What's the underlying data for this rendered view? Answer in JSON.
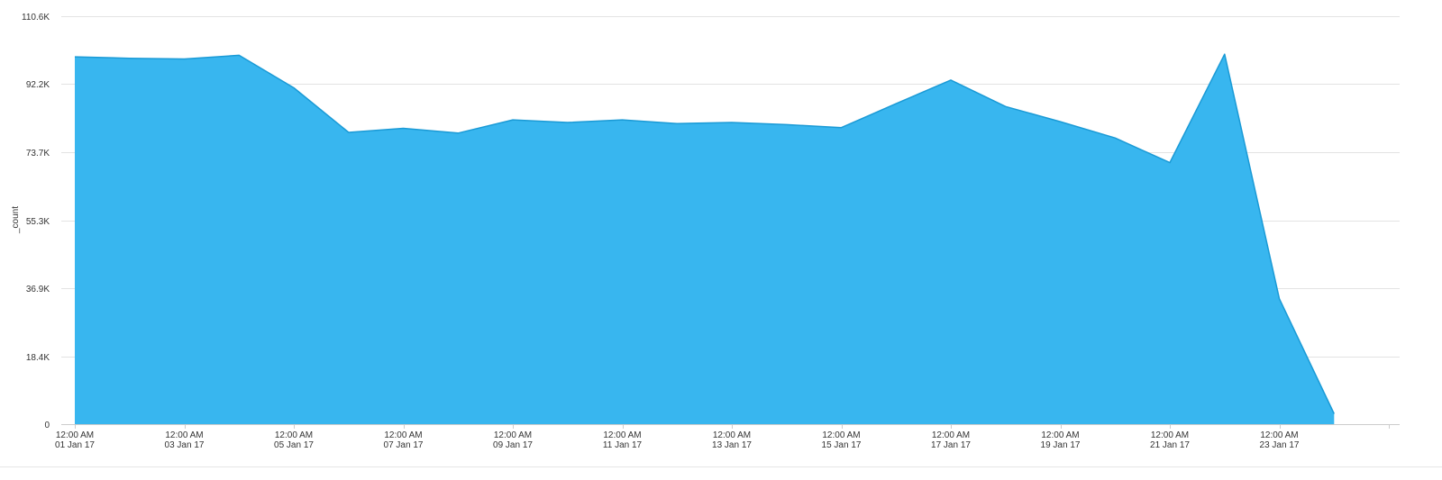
{
  "chart_data": {
    "type": "area",
    "title": "",
    "xlabel": "",
    "ylabel": "_count",
    "ylim": [
      0,
      110600
    ],
    "y_ticks": [
      {
        "value": 0,
        "label": "0"
      },
      {
        "value": 18433,
        "label": "18.4K"
      },
      {
        "value": 36867,
        "label": "36.9K"
      },
      {
        "value": 55300,
        "label": "55.3K"
      },
      {
        "value": 73733,
        "label": "73.7K"
      },
      {
        "value": 92167,
        "label": "92.2K"
      },
      {
        "value": 110600,
        "label": "110.6K"
      }
    ],
    "x_ticks": [
      {
        "date": "2017-01-01",
        "time": "12:00 AM",
        "label": "01 Jan 17"
      },
      {
        "date": "2017-01-03",
        "time": "12:00 AM",
        "label": "03 Jan 17"
      },
      {
        "date": "2017-01-05",
        "time": "12:00 AM",
        "label": "05 Jan 17"
      },
      {
        "date": "2017-01-07",
        "time": "12:00 AM",
        "label": "07 Jan 17"
      },
      {
        "date": "2017-01-09",
        "time": "12:00 AM",
        "label": "09 Jan 17"
      },
      {
        "date": "2017-01-11",
        "time": "12:00 AM",
        "label": "11 Jan 17"
      },
      {
        "date": "2017-01-13",
        "time": "12:00 AM",
        "label": "13 Jan 17"
      },
      {
        "date": "2017-01-15",
        "time": "12:00 AM",
        "label": "15 Jan 17"
      },
      {
        "date": "2017-01-17",
        "time": "12:00 AM",
        "label": "17 Jan 17"
      },
      {
        "date": "2017-01-19",
        "time": "12:00 AM",
        "label": "19 Jan 17"
      },
      {
        "date": "2017-01-21",
        "time": "12:00 AM",
        "label": "21 Jan 17"
      },
      {
        "date": "2017-01-23",
        "time": "12:00 AM",
        "label": "23 Jan 17"
      }
    ],
    "xlim": [
      "2017-01-01",
      "2017-01-25"
    ],
    "grid": true,
    "legend": "none",
    "series": [
      {
        "color": "#38b6ef",
        "line_color": "#1a9ad6",
        "x": [
          "2017-01-01",
          "2017-01-02",
          "2017-01-03",
          "2017-01-04",
          "2017-01-05",
          "2017-01-06",
          "2017-01-07",
          "2017-01-08",
          "2017-01-09",
          "2017-01-10",
          "2017-01-11",
          "2017-01-12",
          "2017-01-13",
          "2017-01-14",
          "2017-01-15",
          "2017-01-16",
          "2017-01-17",
          "2017-01-18",
          "2017-01-19",
          "2017-01-20",
          "2017-01-21",
          "2017-01-22",
          "2017-01-23",
          "2017-01-24"
        ],
        "y": [
          99600,
          99200,
          99000,
          100000,
          91200,
          79100,
          80200,
          78900,
          82500,
          81800,
          82500,
          81500,
          81800,
          81200,
          80400,
          86900,
          93300,
          86100,
          82000,
          77600,
          70900,
          100300,
          34000,
          2800
        ]
      }
    ]
  }
}
